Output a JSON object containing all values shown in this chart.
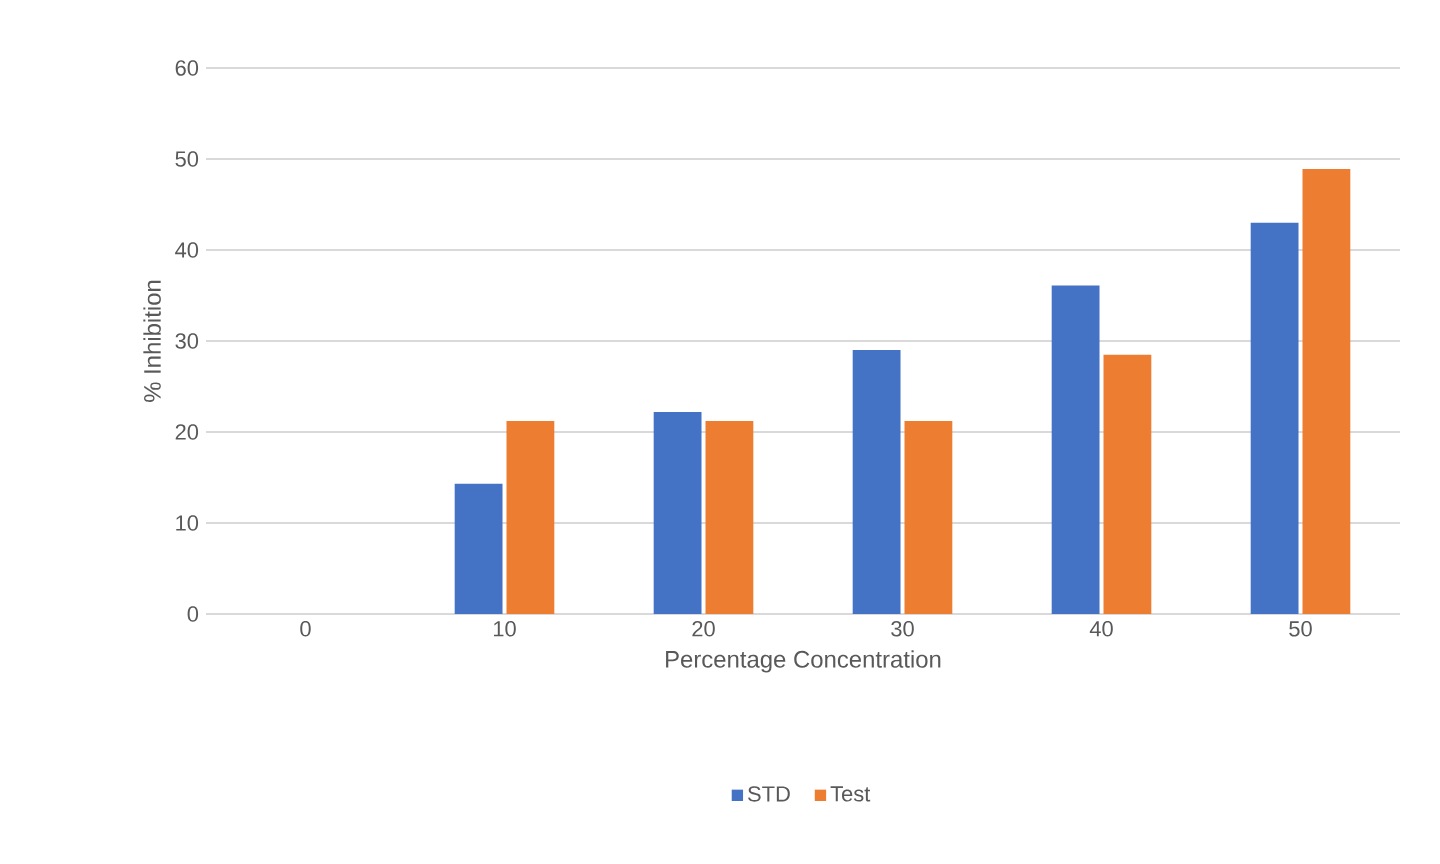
{
  "chart_data": {
    "type": "bar",
    "xlabel": "Percentage Concentration",
    "ylabel": "% Inhibition",
    "categories": [
      "0",
      "10",
      "20",
      "30",
      "40",
      "50"
    ],
    "series": [
      {
        "name": "STD",
        "color": "#4472c4",
        "values": [
          0,
          14.3,
          22.2,
          29.0,
          36.1,
          43.0
        ]
      },
      {
        "name": "Test",
        "color": "#ed7d31",
        "values": [
          0,
          21.2,
          21.2,
          21.2,
          28.5,
          48.9
        ]
      }
    ],
    "ylim": [
      0,
      60
    ],
    "yticks": [
      0,
      10,
      20,
      30,
      40,
      50,
      60
    ],
    "grid": "y",
    "legend": "bottom"
  }
}
